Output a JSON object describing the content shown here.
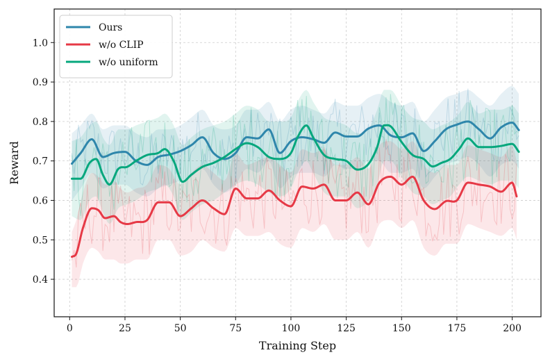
{
  "chart_data": {
    "type": "line",
    "title": "",
    "xlabel": "Training Step",
    "ylabel": "Reward",
    "xlim": [
      -7,
      213
    ],
    "ylim": [
      0.305,
      1.085
    ],
    "xticks": [
      0,
      25,
      50,
      75,
      100,
      125,
      150,
      175,
      200
    ],
    "yticks": [
      0.4,
      0.5,
      0.6,
      0.7,
      0.8,
      0.9,
      1.0
    ],
    "xtick_labels": [
      "0",
      "25",
      "50",
      "75",
      "100",
      "125",
      "150",
      "175",
      "200"
    ],
    "ytick_labels": [
      "0.4",
      "0.5",
      "0.6",
      "0.7",
      "0.8",
      "0.9",
      "1.0"
    ],
    "grid": true,
    "legend_position": "top-left",
    "series": [
      {
        "name": "Ours",
        "color": "#2E86AB",
        "x": [
          1,
          5,
          10,
          15,
          20,
          25,
          30,
          35,
          40,
          45,
          50,
          55,
          60,
          65,
          70,
          75,
          80,
          85,
          90,
          95,
          100,
          105,
          110,
          115,
          120,
          125,
          130,
          135,
          140,
          145,
          150,
          155,
          160,
          165,
          170,
          175,
          180,
          185,
          190,
          195,
          200,
          203
        ],
        "values": [
          0.693,
          0.72,
          0.755,
          0.71,
          0.72,
          0.723,
          0.7,
          0.69,
          0.71,
          0.716,
          0.725,
          0.74,
          0.76,
          0.72,
          0.705,
          0.72,
          0.76,
          0.757,
          0.78,
          0.72,
          0.75,
          0.76,
          0.755,
          0.746,
          0.772,
          0.762,
          0.762,
          0.782,
          0.79,
          0.765,
          0.76,
          0.77,
          0.725,
          0.75,
          0.78,
          0.792,
          0.8,
          0.78,
          0.757,
          0.785,
          0.797,
          0.778
        ],
        "band_upper": [
          0.77,
          0.79,
          0.82,
          0.78,
          0.79,
          0.79,
          0.77,
          0.76,
          0.78,
          0.78,
          0.79,
          0.81,
          0.83,
          0.79,
          0.78,
          0.79,
          0.83,
          0.83,
          0.85,
          0.8,
          0.83,
          0.84,
          0.83,
          0.82,
          0.85,
          0.84,
          0.84,
          0.86,
          0.87,
          0.85,
          0.84,
          0.85,
          0.8,
          0.83,
          0.86,
          0.87,
          0.88,
          0.86,
          0.84,
          0.87,
          0.89,
          0.87
        ],
        "band_lower": [
          0.6,
          0.63,
          0.67,
          0.63,
          0.64,
          0.64,
          0.62,
          0.61,
          0.63,
          0.64,
          0.65,
          0.66,
          0.68,
          0.64,
          0.62,
          0.64,
          0.68,
          0.67,
          0.7,
          0.63,
          0.66,
          0.67,
          0.67,
          0.66,
          0.69,
          0.68,
          0.68,
          0.7,
          0.7,
          0.67,
          0.67,
          0.68,
          0.63,
          0.66,
          0.69,
          0.7,
          0.71,
          0.69,
          0.66,
          0.69,
          0.7,
          0.68
        ]
      },
      {
        "name": "w/o CLIP",
        "color": "#E63946",
        "x": [
          1,
          3,
          6,
          10,
          13,
          16,
          20,
          23,
          26,
          30,
          35,
          40,
          45,
          50,
          55,
          60,
          65,
          70,
          75,
          80,
          85,
          90,
          95,
          100,
          105,
          110,
          115,
          120,
          125,
          130,
          135,
          140,
          145,
          150,
          155,
          160,
          165,
          170,
          175,
          180,
          185,
          190,
          195,
          200,
          202
        ],
        "values": [
          0.457,
          0.465,
          0.53,
          0.58,
          0.575,
          0.555,
          0.56,
          0.545,
          0.54,
          0.545,
          0.55,
          0.595,
          0.595,
          0.56,
          0.58,
          0.6,
          0.58,
          0.565,
          0.63,
          0.605,
          0.605,
          0.625,
          0.6,
          0.585,
          0.635,
          0.63,
          0.64,
          0.6,
          0.6,
          0.62,
          0.59,
          0.645,
          0.66,
          0.64,
          0.66,
          0.6,
          0.578,
          0.598,
          0.6,
          0.645,
          0.64,
          0.635,
          0.622,
          0.645,
          0.61
        ],
        "band_upper": [
          0.52,
          0.55,
          0.62,
          0.67,
          0.66,
          0.64,
          0.65,
          0.63,
          0.62,
          0.63,
          0.64,
          0.69,
          0.68,
          0.64,
          0.67,
          0.69,
          0.67,
          0.65,
          0.72,
          0.69,
          0.7,
          0.71,
          0.69,
          0.67,
          0.73,
          0.72,
          0.73,
          0.69,
          0.69,
          0.71,
          0.68,
          0.74,
          0.75,
          0.73,
          0.75,
          0.69,
          0.67,
          0.69,
          0.69,
          0.74,
          0.73,
          0.72,
          0.71,
          0.74,
          0.7
        ],
        "band_lower": [
          0.38,
          0.38,
          0.44,
          0.48,
          0.47,
          0.45,
          0.45,
          0.44,
          0.44,
          0.45,
          0.45,
          0.5,
          0.5,
          0.46,
          0.47,
          0.5,
          0.48,
          0.47,
          0.53,
          0.51,
          0.51,
          0.52,
          0.49,
          0.48,
          0.53,
          0.52,
          0.54,
          0.5,
          0.5,
          0.52,
          0.48,
          0.54,
          0.55,
          0.53,
          0.55,
          0.48,
          0.46,
          0.49,
          0.49,
          0.54,
          0.53,
          0.52,
          0.51,
          0.53,
          0.5
        ]
      },
      {
        "name": "w/o uniform",
        "color": "#06A77D",
        "x": [
          1,
          5,
          9,
          12,
          15,
          18,
          22,
          26,
          30,
          35,
          40,
          43,
          47,
          51,
          55,
          60,
          65,
          70,
          75,
          80,
          85,
          90,
          95,
          100,
          103,
          107,
          110,
          115,
          120,
          125,
          130,
          135,
          139,
          142,
          145,
          150,
          155,
          160,
          164,
          168,
          172,
          176,
          180,
          185,
          190,
          195,
          200,
          203
        ],
        "values": [
          0.655,
          0.655,
          0.695,
          0.705,
          0.665,
          0.64,
          0.68,
          0.685,
          0.7,
          0.715,
          0.72,
          0.73,
          0.7,
          0.647,
          0.665,
          0.685,
          0.695,
          0.71,
          0.73,
          0.745,
          0.735,
          0.71,
          0.705,
          0.72,
          0.76,
          0.79,
          0.76,
          0.715,
          0.705,
          0.7,
          0.678,
          0.692,
          0.735,
          0.79,
          0.788,
          0.748,
          0.715,
          0.705,
          0.686,
          0.695,
          0.705,
          0.73,
          0.757,
          0.735,
          0.735,
          0.738,
          0.743,
          0.723
        ],
        "band_upper": [
          0.75,
          0.76,
          0.79,
          0.8,
          0.76,
          0.74,
          0.78,
          0.78,
          0.79,
          0.8,
          0.81,
          0.82,
          0.79,
          0.74,
          0.76,
          0.78,
          0.79,
          0.8,
          0.82,
          0.84,
          0.83,
          0.8,
          0.8,
          0.81,
          0.85,
          0.88,
          0.85,
          0.81,
          0.8,
          0.79,
          0.77,
          0.78,
          0.83,
          0.88,
          0.88,
          0.84,
          0.81,
          0.8,
          0.78,
          0.79,
          0.8,
          0.82,
          0.85,
          0.82,
          0.83,
          0.83,
          0.84,
          0.82
        ],
        "band_lower": [
          0.56,
          0.55,
          0.6,
          0.61,
          0.57,
          0.54,
          0.58,
          0.59,
          0.6,
          0.62,
          0.63,
          0.64,
          0.61,
          0.55,
          0.57,
          0.59,
          0.6,
          0.62,
          0.64,
          0.65,
          0.64,
          0.62,
          0.61,
          0.63,
          0.67,
          0.7,
          0.67,
          0.62,
          0.61,
          0.61,
          0.58,
          0.6,
          0.64,
          0.7,
          0.7,
          0.66,
          0.62,
          0.61,
          0.59,
          0.6,
          0.61,
          0.64,
          0.66,
          0.65,
          0.64,
          0.65,
          0.65,
          0.63
        ]
      }
    ]
  }
}
